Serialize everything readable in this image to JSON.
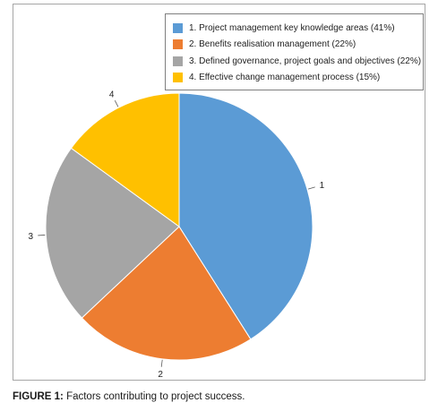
{
  "chart_data": {
    "type": "pie",
    "title": "",
    "categories": [
      "1",
      "2",
      "3",
      "4"
    ],
    "values": [
      41,
      22,
      22,
      15
    ],
    "slice_labels": [
      "1",
      "2",
      "3",
      "4"
    ],
    "legend": [
      "1. Project management key knowledge areas (41%)",
      "2. Benefits realisation management (22%)",
      "3. Defined governance, project goals and objectives (22%)",
      "4. Effective change management process (15%)"
    ],
    "colors": [
      "#5b9bd5",
      "#ed7d31",
      "#a5a5a5",
      "#ffc000"
    ],
    "legend_position": "top-right"
  },
  "caption": {
    "label": "FIGURE 1:",
    "text": " Factors contributing to project success."
  }
}
